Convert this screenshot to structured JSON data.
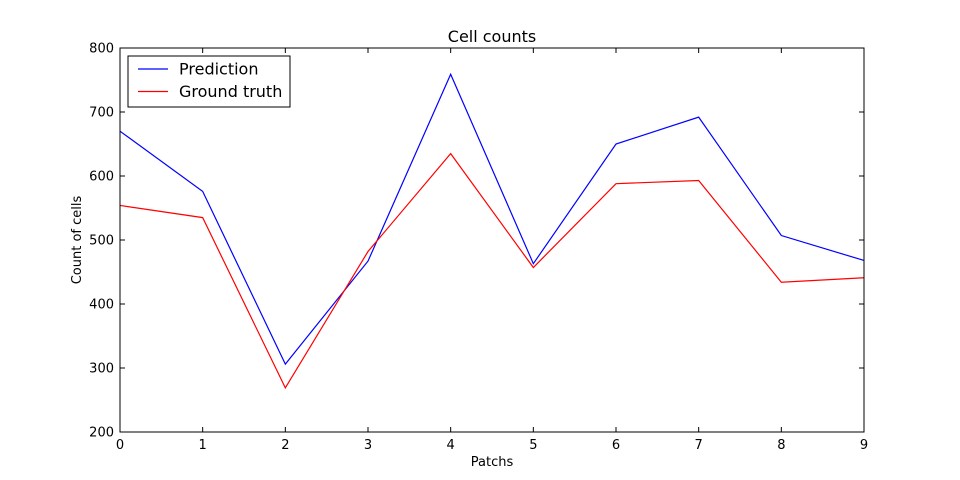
{
  "chart_data": {
    "type": "line",
    "title": "Cell counts",
    "xlabel": "Patchs",
    "ylabel": "Count of cells",
    "x": [
      0,
      1,
      2,
      3,
      4,
      5,
      6,
      7,
      8,
      9
    ],
    "xlim": [
      0,
      9
    ],
    "ylim": [
      200,
      800
    ],
    "x_ticks": [
      "0",
      "1",
      "2",
      "3",
      "4",
      "5",
      "6",
      "7",
      "8",
      "9"
    ],
    "y_ticks": [
      "200",
      "300",
      "400",
      "500",
      "600",
      "700",
      "800"
    ],
    "grid": false,
    "legend_position": "top-left",
    "series": [
      {
        "name": "Prediction",
        "color": "#0000ff",
        "values": [
          670,
          576,
          306,
          467,
          759,
          463,
          650,
          692,
          507,
          468
        ]
      },
      {
        "name": "Ground truth",
        "color": "#ff0000",
        "values": [
          554,
          535,
          269,
          482,
          635,
          457,
          588,
          593,
          434,
          441
        ]
      }
    ]
  }
}
